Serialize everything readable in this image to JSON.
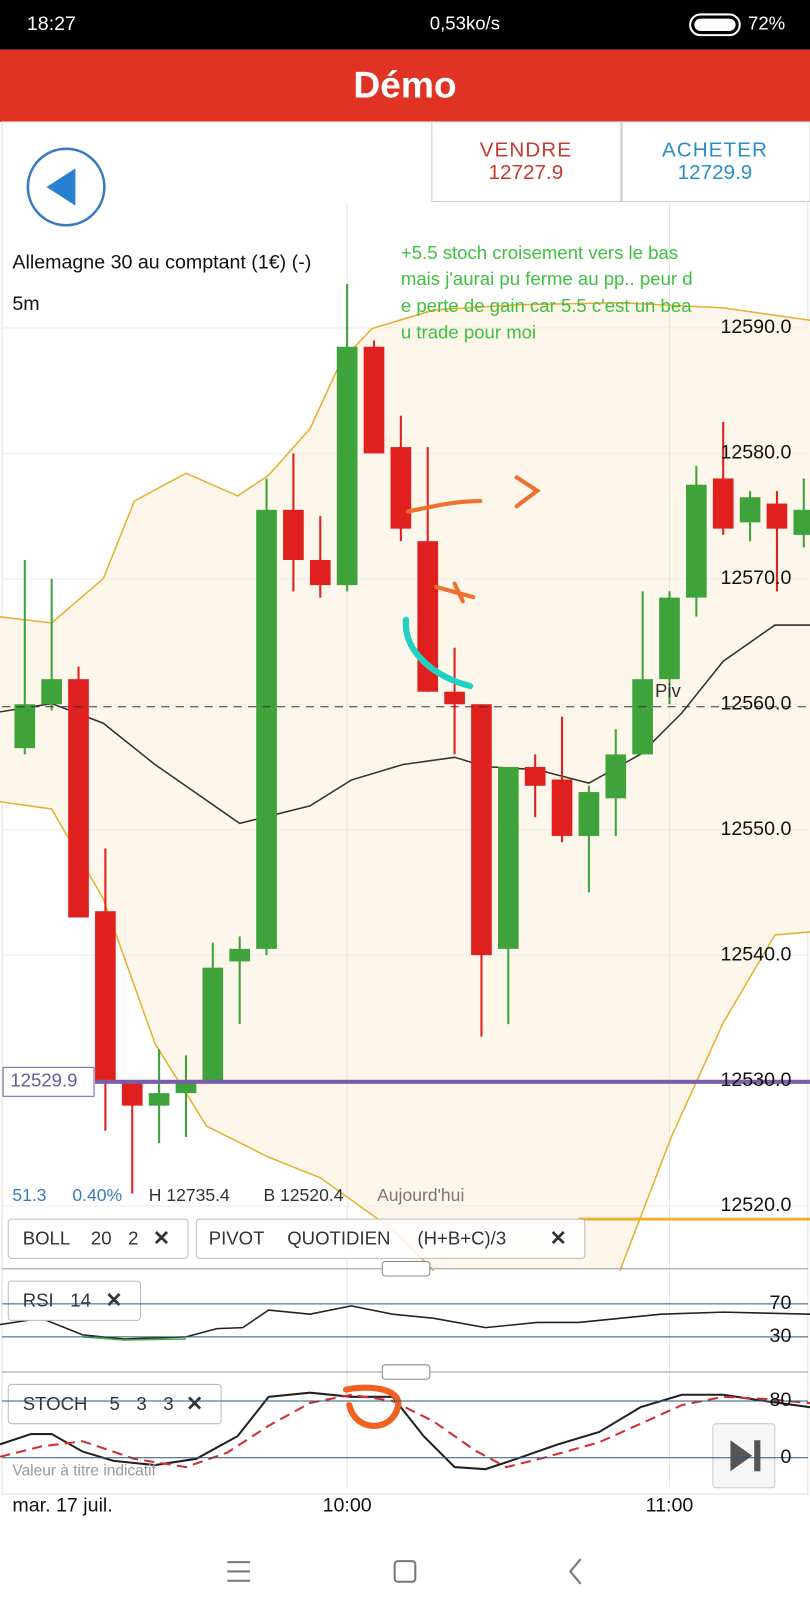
{
  "status_bar": {
    "time": "18:27",
    "network": "0,53ko/s",
    "battery": "72%"
  },
  "header": {
    "title": "Démo"
  },
  "trade": {
    "sell": {
      "label": "VENDRE",
      "price": "12727.9"
    },
    "buy": {
      "label": "ACHETER",
      "price": "12729.9"
    }
  },
  "instrument": {
    "name": "Allemagne 30 au comptant (1€) (-)",
    "timeframe": "5m"
  },
  "note": [
    "+5.5 stoch croisement vers le bas",
    "mais j'aurai pu ferme au pp.. peur d",
    "e perte de gain car 5.5 c'est un bea",
    "u trade pour moi"
  ],
  "chart": {
    "type": "candlestick",
    "ylim": [
      12515,
      12600
    ],
    "yticks": [
      {
        "value": 12520,
        "label": "12520.0"
      },
      {
        "value": 12530,
        "label": "12530.0"
      },
      {
        "value": 12540,
        "label": "12540.0"
      },
      {
        "value": 12550,
        "label": "12550.0"
      },
      {
        "value": 12560,
        "label": "12560.0"
      },
      {
        "value": 12570,
        "label": "12570.0"
      },
      {
        "value": 12580,
        "label": "12580.0"
      },
      {
        "value": 12590,
        "label": "12590.0"
      }
    ],
    "up_color": "#3da33a",
    "down_color": "#e0201e",
    "candles": [
      {
        "open": 12556.5,
        "high": 12571.5,
        "low": 12556,
        "close": 12560
      },
      {
        "open": 12560,
        "high": 12570,
        "low": 12559.5,
        "close": 12562
      },
      {
        "open": 12562,
        "high": 12563,
        "low": 12543,
        "close": 12543
      },
      {
        "open": 12543.5,
        "high": 12548.5,
        "low": 12526,
        "close": 12530
      },
      {
        "open": 12530,
        "high": 12530,
        "low": 12521,
        "close": 12528
      },
      {
        "open": 12528,
        "high": 12532.5,
        "low": 12525,
        "close": 12529
      },
      {
        "open": 12529,
        "high": 12532,
        "low": 12525.5,
        "close": 12530
      },
      {
        "open": 12530,
        "high": 12541,
        "low": 12530,
        "close": 12539
      },
      {
        "open": 12539.5,
        "high": 12541.5,
        "low": 12534.5,
        "close": 12540.5
      },
      {
        "open": 12540.5,
        "high": 12578,
        "low": 12540,
        "close": 12575.5
      },
      {
        "open": 12575.5,
        "high": 12580,
        "low": 12569,
        "close": 12571.5
      },
      {
        "open": 12571.5,
        "high": 12575,
        "low": 12568.5,
        "close": 12569.5
      },
      {
        "open": 12569.5,
        "high": 12593.5,
        "low": 12569,
        "close": 12588.5
      },
      {
        "open": 12588.5,
        "high": 12589,
        "low": 12580,
        "close": 12580
      },
      {
        "open": 12580.5,
        "high": 12583,
        "low": 12573,
        "close": 12574
      },
      {
        "open": 12573,
        "high": 12580.5,
        "low": 12561,
        "close": 12561
      },
      {
        "open": 12561,
        "high": 12564.5,
        "low": 12556,
        "close": 12560
      },
      {
        "open": 12560,
        "high": 12560,
        "low": 12533.5,
        "close": 12540
      },
      {
        "open": 12540.5,
        "high": 12555,
        "low": 12534.5,
        "close": 12555
      },
      {
        "open": 12555,
        "high": 12556,
        "low": 12551,
        "close": 12553.5
      },
      {
        "open": 12554,
        "high": 12559,
        "low": 12549,
        "close": 12549.5
      },
      {
        "open": 12549.5,
        "high": 12553.5,
        "low": 12545,
        "close": 12553
      },
      {
        "open": 12552.5,
        "high": 12558,
        "low": 12549.5,
        "close": 12556
      },
      {
        "open": 12556,
        "high": 12569,
        "low": 12556,
        "close": 12562
      },
      {
        "open": 12562,
        "high": 12569,
        "low": 12560,
        "close": 12568.5
      },
      {
        "open": 12568.5,
        "high": 12579,
        "low": 12567,
        "close": 12577.5
      },
      {
        "open": 12578,
        "high": 12582.5,
        "low": 12573.5,
        "close": 12574
      },
      {
        "open": 12574.5,
        "high": 12577,
        "low": 12573,
        "close": 12576.5
      },
      {
        "open": 12576,
        "high": 12577,
        "low": 12569,
        "close": 12574
      },
      {
        "open": 12573.5,
        "high": 12578,
        "low": 12572.5,
        "close": 12575.5
      }
    ],
    "pivot": {
      "label": "Piv",
      "value": 12559.8
    },
    "level": 12529.9,
    "date": "mar. 17 juil.",
    "xticks": [
      {
        "label": "10:00",
        "index": 12
      },
      {
        "label": "11:00",
        "index": 24
      }
    ]
  },
  "stats": [
    "51.3",
    "0.40%",
    "H 12735.4",
    "B 12520.4",
    "Aujourd'hui"
  ],
  "indicators": {
    "boll": [
      "BOLL",
      "20",
      "2"
    ],
    "pivot": [
      "PIVOT",
      "QUOTIDIEN",
      "(H+B+C)/3"
    ]
  },
  "rsi": {
    "label": "RSI",
    "period": "14",
    "ylim": [
      0,
      100
    ],
    "yticks": [
      70,
      30
    ]
  },
  "stoch": {
    "label": "STOCH",
    "params": [
      "5",
      "3",
      "3"
    ],
    "ylim": [
      0,
      100
    ],
    "yticks": [
      80,
      0
    ]
  },
  "disclaimer": "Valeur à titre indicatif"
}
